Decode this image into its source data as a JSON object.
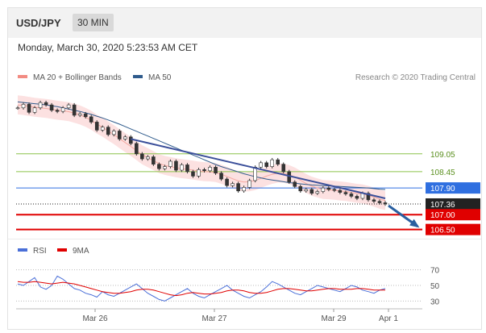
{
  "header": {
    "symbol": "USD/JPY",
    "timeframe": "30 MIN"
  },
  "timestamp": "Monday, March 30, 2020 5:23:53 AM CET",
  "legend_main": [
    {
      "label": "MA 20 + Bollinger Bands",
      "color": "#f28b82"
    },
    {
      "label": "MA 50",
      "color": "#2f5b8c"
    }
  ],
  "copyright": "Research © 2020 Trading Central",
  "legend_rsi": [
    {
      "label": "RSI",
      "color": "#4a6fd8"
    },
    {
      "label": "9MA",
      "color": "#e00000"
    }
  ],
  "colors": {
    "band_fill": "#fbd9d9",
    "ma20": "#f5a8a0",
    "ma50": "#2f5b8c",
    "candle": "#333333",
    "trendline": "#3b4f9a",
    "arrow": "#2a5fa0",
    "support": "#e00000",
    "resistance_green": "#8bc34a",
    "pivot_blue": "#2f6fe0",
    "current_price": "#222222",
    "rsi": "#4a6fd8",
    "rsi_ma": "#e00000"
  },
  "chart_data": [
    {
      "type": "line",
      "x_labels": [
        "Mar 26",
        "Mar 27",
        "Mar 29",
        "Apr 1"
      ],
      "ylim": [
        106.3,
        111.3
      ],
      "close": [
        110.6,
        110.72,
        110.45,
        110.6,
        110.78,
        110.7,
        110.52,
        110.48,
        110.6,
        110.7,
        110.35,
        110.4,
        110.3,
        110.12,
        109.85,
        109.95,
        109.7,
        109.82,
        109.55,
        109.62,
        109.4,
        109.05,
        108.88,
        108.95,
        108.7,
        108.55,
        108.62,
        108.8,
        108.5,
        108.68,
        108.45,
        108.3,
        108.52,
        108.48,
        108.6,
        108.4,
        108.2,
        107.98,
        108.05,
        107.8,
        107.92,
        108.15,
        108.6,
        108.75,
        108.62,
        108.85,
        108.7,
        108.45,
        108.1,
        107.95,
        107.8,
        107.85,
        107.72,
        107.78,
        107.9,
        107.85,
        107.82,
        107.75,
        107.7,
        107.62,
        107.55,
        107.72,
        107.5,
        107.45,
        107.4,
        107.36
      ],
      "ma20": [
        110.7,
        110.68,
        110.65,
        110.62,
        110.6,
        110.58,
        110.55,
        110.52,
        110.5,
        110.47,
        110.42,
        110.36,
        110.28,
        110.18,
        110.05,
        109.95,
        109.82,
        109.7,
        109.56,
        109.43,
        109.3,
        109.16,
        109.02,
        108.92,
        108.82,
        108.72,
        108.66,
        108.62,
        108.58,
        108.55,
        108.53,
        108.5,
        108.47,
        108.45,
        108.44,
        108.42,
        108.36,
        108.29,
        108.21,
        108.14,
        108.1,
        108.11,
        108.15,
        108.22,
        108.3,
        108.36,
        108.4,
        108.4,
        108.35,
        108.27,
        108.16,
        108.05,
        107.96,
        107.9,
        107.85,
        107.84,
        107.82,
        107.8,
        107.78,
        107.75,
        107.72,
        107.7,
        107.65,
        107.59,
        107.52,
        107.48
      ],
      "ma50": [
        110.8,
        110.78,
        110.76,
        110.74,
        110.72,
        110.7,
        110.67,
        110.64,
        110.6,
        110.56,
        110.52,
        110.48,
        110.43,
        110.38,
        110.32,
        110.26,
        110.19,
        110.12,
        110.05,
        109.97,
        109.89,
        109.81,
        109.73,
        109.65,
        109.57,
        109.49,
        109.41,
        109.33,
        109.25,
        109.17,
        109.09,
        109.01,
        108.93,
        108.85,
        108.77,
        108.69,
        108.62,
        108.56,
        108.5,
        108.44,
        108.38,
        108.33,
        108.28,
        108.24,
        108.2,
        108.17,
        108.14,
        108.11,
        108.08,
        108.06,
        108.04,
        108.02,
        108.0,
        107.99,
        107.98,
        107.97,
        107.96,
        107.95,
        107.94,
        107.93,
        107.92,
        107.91,
        107.9,
        107.88,
        107.86,
        107.85
      ],
      "band_width": 0.32,
      "trendline": {
        "from_index": 20,
        "from_value": 109.55,
        "to_index": 65,
        "to_value": 107.55
      },
      "forecast_arrow": {
        "from_index": 66,
        "from_value": 107.36,
        "to_value": 106.5
      },
      "levels": [
        {
          "label": "109.05",
          "value": 109.05,
          "style": "resistance_green",
          "tag": "text"
        },
        {
          "label": "108.45",
          "value": 108.45,
          "style": "resistance_green",
          "tag": "text"
        },
        {
          "label": "107.90",
          "value": 107.9,
          "style": "pivot_blue",
          "tag": "box"
        },
        {
          "label": "107.36",
          "value": 107.36,
          "style": "current_price",
          "tag": "box"
        },
        {
          "label": "107.00",
          "value": 107.0,
          "style": "support",
          "tag": "box"
        },
        {
          "label": "106.50",
          "value": 106.5,
          "style": "support",
          "tag": "box"
        }
      ]
    },
    {
      "type": "line",
      "ylim": [
        20,
        80
      ],
      "ticks": [
        "70",
        "50",
        "30"
      ],
      "tick_values": [
        70,
        50,
        30
      ],
      "rsi": [
        52,
        50,
        55,
        60,
        48,
        45,
        50,
        62,
        58,
        52,
        46,
        44,
        40,
        38,
        35,
        42,
        38,
        36,
        40,
        44,
        48,
        52,
        46,
        40,
        36,
        32,
        30,
        34,
        38,
        42,
        46,
        40,
        36,
        34,
        38,
        42,
        46,
        50,
        44,
        40,
        36,
        34,
        38,
        42,
        48,
        55,
        52,
        48,
        44,
        40,
        38,
        42,
        46,
        50,
        48,
        46,
        44,
        42,
        46,
        50,
        48,
        44,
        42,
        40,
        44,
        46
      ],
      "rsi_ma": [
        55,
        54,
        54,
        55,
        54,
        53,
        52,
        53,
        54,
        53,
        52,
        50,
        48,
        46,
        44,
        42,
        41,
        40,
        40,
        41,
        42,
        44,
        45,
        45,
        44,
        42,
        40,
        38,
        37,
        38,
        40,
        41,
        40,
        39,
        39,
        40,
        41,
        43,
        44,
        44,
        43,
        41,
        40,
        40,
        41,
        43,
        45,
        46,
        46,
        45,
        44,
        43,
        43,
        44,
        45,
        46,
        46,
        45,
        45,
        45,
        46,
        46,
        45,
        44,
        44,
        44
      ]
    }
  ]
}
